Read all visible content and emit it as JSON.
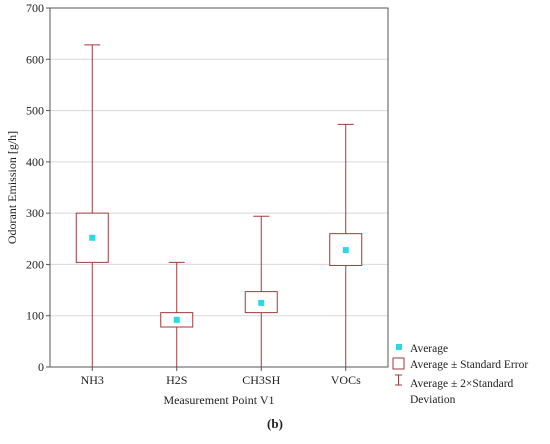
{
  "chart_data": {
    "type": "box",
    "categories": [
      "NH3",
      "H2S",
      "CH3SH",
      "VOCs"
    ],
    "series": [
      {
        "average": [
          252,
          92,
          125,
          228
        ],
        "se_lower": [
          204,
          78,
          106,
          198
        ],
        "se_upper": [
          300,
          106,
          147,
          260
        ],
        "sd2_lower": [
          0,
          0,
          0,
          0
        ],
        "sd2_upper": [
          628,
          204,
          294,
          473
        ]
      }
    ],
    "xlabel": "Measurement Point V1",
    "ylabel": "Odorant Emission [g/h]",
    "ylim": [
      0,
      700
    ],
    "yticks": [
      0,
      100,
      200,
      300,
      400,
      500,
      600,
      700
    ],
    "grid": true,
    "legend_position": "bottom-right",
    "legend": [
      {
        "symbol": "average-marker",
        "label": "Average"
      },
      {
        "symbol": "se-box",
        "label": "Average ± Standard Error"
      },
      {
        "symbol": "sd-whisker",
        "label": "Average ± 2×Standard",
        "label2": "Deviation"
      }
    ],
    "panel_label": "(b)",
    "colors": {
      "box": "#a0393c",
      "whisker": "#a0393c",
      "average": "#29d9e6",
      "grid": "#d9d9d9",
      "frame": "#555555"
    }
  }
}
